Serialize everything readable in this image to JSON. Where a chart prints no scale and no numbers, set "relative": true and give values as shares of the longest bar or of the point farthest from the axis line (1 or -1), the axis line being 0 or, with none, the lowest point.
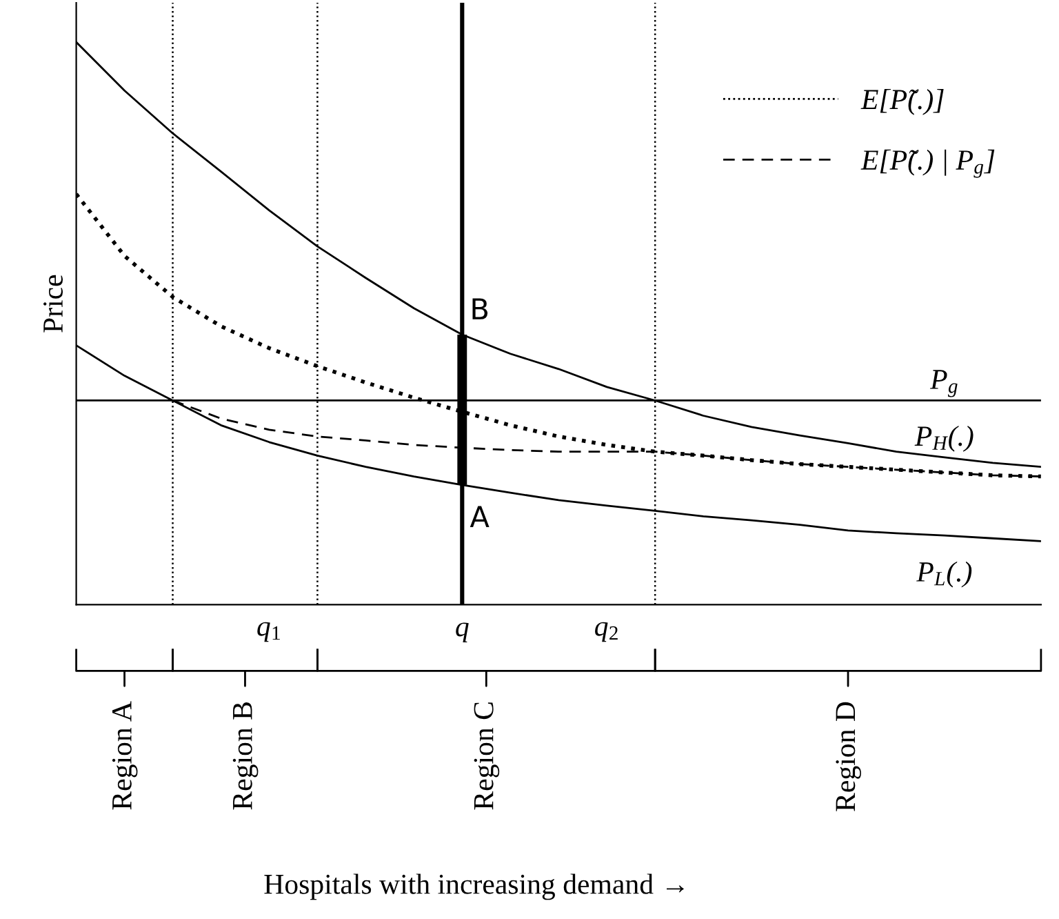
{
  "chart_data": {
    "type": "line",
    "relative": true,
    "ylabel": "Price",
    "categories": [
      null,
      null,
      null,
      null,
      "q$_{1}$",
      null,
      null,
      null,
      "q",
      null,
      null,
      "q$_{2}$",
      null,
      null,
      null,
      null,
      null,
      null,
      null,
      null,
      null
    ],
    "legend": "top right",
    "grid": false,
    "series": [
      {
        "name": "P$_{H}$(.)",
        "color": "#000000",
        "line_style": "solid",
        "values": [
          1.0,
          0.914,
          0.838,
          0.77,
          0.701,
          0.637,
          0.581,
          0.527,
          0.48,
          0.446,
          0.419,
          0.387,
          0.363,
          0.336,
          0.316,
          0.301,
          0.287,
          0.272,
          0.262,
          0.252,
          0.245
        ]
      },
      {
        "name": "P$_{L}$(.)",
        "color": "#000000",
        "line_style": "solid",
        "values": [
          0.461,
          0.407,
          0.363,
          0.319,
          0.289,
          0.265,
          0.245,
          0.228,
          0.213,
          0.199,
          0.186,
          0.176,
          0.167,
          0.157,
          0.15,
          0.142,
          0.132,
          0.127,
          0.123,
          0.118,
          0.113
        ]
      },
      {
        "name": "P$_{g}$",
        "color": "#000000",
        "line_style": "solid",
        "values": [
          0.363,
          0.363,
          0.363,
          0.363,
          0.363,
          0.363,
          0.363,
          0.363,
          0.363,
          0.363,
          0.363,
          0.363,
          0.363,
          0.363,
          0.363,
          0.363,
          0.363,
          0.363,
          0.363,
          0.363,
          0.363
        ]
      },
      {
        "name": "E[P̃(.)]",
        "color": "#000000",
        "line_style": "dotted",
        "values": [
          0.73,
          0.62,
          0.547,
          0.495,
          0.456,
          0.424,
          0.395,
          0.368,
          0.343,
          0.319,
          0.299,
          0.284,
          0.272,
          0.265,
          0.257,
          0.25,
          0.245,
          0.24,
          0.235,
          0.23,
          0.228
        ]
      },
      {
        "name": "E[P̃(.) | P$_{g}$]",
        "color": "#000000",
        "line_style": "dashed",
        "values": [
          null,
          null,
          0.363,
          0.331,
          0.311,
          0.299,
          0.292,
          0.284,
          0.279,
          0.275,
          0.272,
          0.272,
          0.272,
          0.265,
          0.257,
          0.25,
          0.245,
          0.24,
          0.235,
          0.23,
          0.228
        ]
      }
    ],
    "ref_lines": [
      {
        "axis": "x",
        "value": "q",
        "line_style": "solid",
        "color": "#000000"
      }
    ],
    "annotations": [
      "Region A",
      "Region B",
      "Region C",
      "Region D",
      "Hospitals with increasing demand →",
      {
        "text": "B",
        "x": "q",
        "y": 0.48
      },
      {
        "text": "A",
        "x": "q",
        "y": 0.213
      }
    ]
  }
}
